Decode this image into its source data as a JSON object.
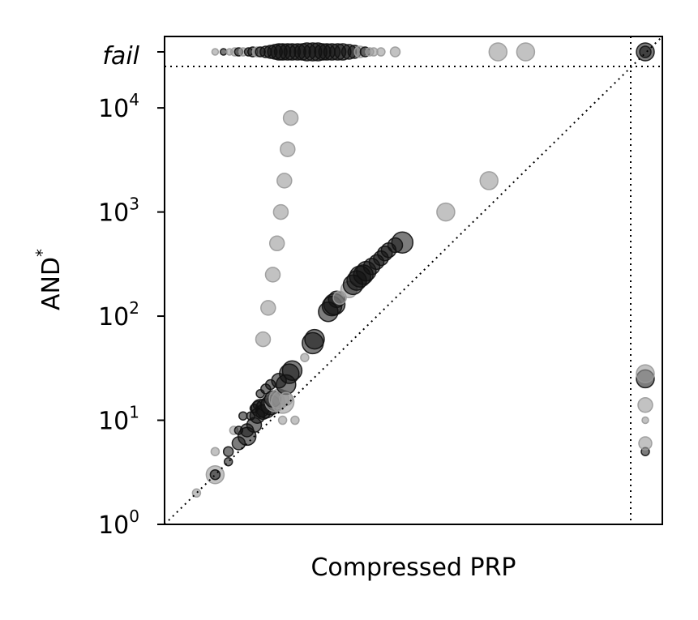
{
  "chart_data": {
    "type": "scatter",
    "title": "",
    "xlabel": "Compressed PRP",
    "ylabel": "AND",
    "ylabel_sup": "*",
    "x_scale": "log",
    "y_scale": "log",
    "xlim": [
      1,
      25000
    ],
    "ylim": [
      1,
      25000
    ],
    "x_ticks_shown": false,
    "y_ticks": [
      {
        "value": 1,
        "base": "10",
        "exp": "0"
      },
      {
        "value": 10,
        "base": "10",
        "exp": "1"
      },
      {
        "value": 100,
        "base": "10",
        "exp": "2"
      },
      {
        "value": 1000,
        "base": "10",
        "exp": "3"
      },
      {
        "value": 10000,
        "base": "10",
        "exp": "4"
      }
    ],
    "fail_label": "fail",
    "fail_band": "beyond the dotted timeout lines on both axes",
    "diagonal": "y = x dotted reference line",
    "grid": false,
    "legend": "none",
    "colors": {
      "dark": "#111111",
      "gray": "#9a9a9a",
      "axis": "#000000"
    },
    "points": [
      {
        "x": 2,
        "y": 2,
        "s": 5,
        "c": "g"
      },
      {
        "x": 3,
        "y": 3,
        "s": 11,
        "c": "g"
      },
      {
        "x": 3,
        "y": 3,
        "s": 6,
        "c": "d"
      },
      {
        "x": 3,
        "y": 5,
        "s": 5,
        "c": "g"
      },
      {
        "x": 4,
        "y": 4,
        "s": 5,
        "c": "d"
      },
      {
        "x": 4,
        "y": 5,
        "s": 6,
        "c": "d"
      },
      {
        "x": 4.5,
        "y": 8,
        "s": 5,
        "c": "g"
      },
      {
        "x": 5,
        "y": 6,
        "s": 8,
        "c": "d"
      },
      {
        "x": 5,
        "y": 8,
        "s": 5,
        "c": "d"
      },
      {
        "x": 6,
        "y": 7,
        "s": 11,
        "c": "d"
      },
      {
        "x": 6,
        "y": 8,
        "s": 8,
        "c": "d"
      },
      {
        "x": 5.5,
        "y": 11,
        "s": 5,
        "c": "d"
      },
      {
        "x": 6.5,
        "y": 11,
        "s": 5,
        "c": "d"
      },
      {
        "x": 7,
        "y": 9,
        "s": 9,
        "c": "d"
      },
      {
        "x": 7.5,
        "y": 11,
        "s": 9,
        "c": "d"
      },
      {
        "x": 7,
        "y": 13,
        "s": 5,
        "c": "d"
      },
      {
        "x": 7.5,
        "y": 14,
        "s": 5,
        "c": "d"
      },
      {
        "x": 8,
        "y": 13,
        "s": 11,
        "c": "d"
      },
      {
        "x": 8.5,
        "y": 12,
        "s": 9,
        "c": "d"
      },
      {
        "x": 8,
        "y": 18,
        "s": 5,
        "c": "d"
      },
      {
        "x": 9,
        "y": 13,
        "s": 12,
        "c": "d"
      },
      {
        "x": 9,
        "y": 20,
        "s": 6,
        "c": "d"
      },
      {
        "x": 10,
        "y": 22,
        "s": 6,
        "c": "d"
      },
      {
        "x": 10,
        "y": 14,
        "s": 12,
        "c": "d"
      },
      {
        "x": 11,
        "y": 15,
        "s": 12,
        "c": "g"
      },
      {
        "x": 10.5,
        "y": 16,
        "s": 10,
        "c": "d"
      },
      {
        "x": 12,
        "y": 16,
        "s": 12,
        "c": "g"
      },
      {
        "x": 12,
        "y": 24,
        "s": 9,
        "c": "d"
      },
      {
        "x": 13,
        "y": 15,
        "s": 14,
        "c": "g"
      },
      {
        "x": 14,
        "y": 22,
        "s": 12,
        "c": "d"
      },
      {
        "x": 15,
        "y": 28,
        "s": 12,
        "c": "d"
      },
      {
        "x": 16,
        "y": 30,
        "s": 12,
        "c": "d"
      },
      {
        "x": 14,
        "y": 16,
        "s": 8,
        "c": "g"
      },
      {
        "x": 13,
        "y": 10,
        "s": 5,
        "c": "g"
      },
      {
        "x": 17,
        "y": 10,
        "s": 5,
        "c": "g"
      },
      {
        "x": 21,
        "y": 40,
        "s": 5,
        "c": "g"
      },
      {
        "x": 25,
        "y": 55,
        "s": 13,
        "c": "d"
      },
      {
        "x": 26,
        "y": 60,
        "s": 12,
        "c": "d"
      },
      {
        "x": 35,
        "y": 110,
        "s": 12,
        "c": "d"
      },
      {
        "x": 38,
        "y": 125,
        "s": 12,
        "c": "d"
      },
      {
        "x": 40,
        "y": 130,
        "s": 13,
        "c": "d"
      },
      {
        "x": 42,
        "y": 145,
        "s": 10,
        "c": "d"
      },
      {
        "x": 45,
        "y": 150,
        "s": 8,
        "c": "g"
      },
      {
        "x": 55,
        "y": 180,
        "s": 10,
        "c": "g"
      },
      {
        "x": 60,
        "y": 200,
        "s": 12,
        "c": "d"
      },
      {
        "x": 65,
        "y": 220,
        "s": 12,
        "c": "d"
      },
      {
        "x": 70,
        "y": 240,
        "s": 13,
        "c": "d"
      },
      {
        "x": 75,
        "y": 250,
        "s": 12,
        "c": "d"
      },
      {
        "x": 80,
        "y": 270,
        "s": 12,
        "c": "d"
      },
      {
        "x": 90,
        "y": 300,
        "s": 10,
        "c": "d"
      },
      {
        "x": 100,
        "y": 330,
        "s": 9,
        "c": "d"
      },
      {
        "x": 110,
        "y": 360,
        "s": 9,
        "c": "d"
      },
      {
        "x": 120,
        "y": 400,
        "s": 9,
        "c": "d"
      },
      {
        "x": 130,
        "y": 430,
        "s": 9,
        "c": "d"
      },
      {
        "x": 150,
        "y": 480,
        "s": 9,
        "c": "d"
      },
      {
        "x": 175,
        "y": 510,
        "s": 13,
        "c": "d"
      },
      {
        "x": 450,
        "y": 1000,
        "s": 11,
        "c": "g"
      },
      {
        "x": 1150,
        "y": 2000,
        "s": 11,
        "c": "g"
      },
      {
        "x": 8.5,
        "y": 60,
        "s": 9,
        "c": "g"
      },
      {
        "x": 9.5,
        "y": 120,
        "s": 9,
        "c": "g"
      },
      {
        "x": 10.5,
        "y": 250,
        "s": 9,
        "c": "g"
      },
      {
        "x": 11.5,
        "y": 500,
        "s": 9,
        "c": "g"
      },
      {
        "x": 12.5,
        "y": 1000,
        "s": 9,
        "c": "g"
      },
      {
        "x": 13.5,
        "y": 2000,
        "s": 9,
        "c": "g"
      },
      {
        "x": 14.5,
        "y": 4000,
        "s": 9,
        "c": "g"
      },
      {
        "x": 15.5,
        "y": 8000,
        "s": 9,
        "c": "g"
      }
    ],
    "fail_y_points": [
      {
        "x": 3,
        "s": 4,
        "c": "g"
      },
      {
        "x": 3.6,
        "s": 4,
        "c": "d"
      },
      {
        "x": 4.1,
        "s": 4,
        "c": "g"
      },
      {
        "x": 4.6,
        "s": 5,
        "c": "g"
      },
      {
        "x": 5,
        "s": 5,
        "c": "d"
      },
      {
        "x": 5.5,
        "s": 5,
        "c": "g"
      },
      {
        "x": 6.2,
        "s": 5,
        "c": "d"
      },
      {
        "x": 6.8,
        "s": 6,
        "c": "d"
      },
      {
        "x": 7.5,
        "s": 6,
        "c": "g"
      },
      {
        "x": 8,
        "s": 6,
        "c": "d"
      },
      {
        "x": 9,
        "s": 7,
        "c": "d"
      },
      {
        "x": 10,
        "s": 8,
        "c": "d"
      },
      {
        "x": 11,
        "s": 9,
        "c": "d"
      },
      {
        "x": 12,
        "s": 10,
        "c": "d"
      },
      {
        "x": 13,
        "s": 10,
        "c": "d"
      },
      {
        "x": 14.5,
        "s": 10,
        "c": "d"
      },
      {
        "x": 16,
        "s": 10,
        "c": "d"
      },
      {
        "x": 18,
        "s": 10,
        "c": "d"
      },
      {
        "x": 20,
        "s": 10,
        "c": "d"
      },
      {
        "x": 22,
        "s": 11,
        "c": "d"
      },
      {
        "x": 25,
        "s": 11,
        "c": "d"
      },
      {
        "x": 28,
        "s": 11,
        "c": "d"
      },
      {
        "x": 31,
        "s": 10,
        "c": "d"
      },
      {
        "x": 34,
        "s": 10,
        "c": "d"
      },
      {
        "x": 38,
        "s": 10,
        "c": "d"
      },
      {
        "x": 43,
        "s": 10,
        "c": "d"
      },
      {
        "x": 48,
        "s": 10,
        "c": "d"
      },
      {
        "x": 55,
        "s": 9,
        "c": "d"
      },
      {
        "x": 62,
        "s": 8,
        "c": "d"
      },
      {
        "x": 70,
        "s": 7,
        "c": "g"
      },
      {
        "x": 78,
        "s": 6,
        "c": "d"
      },
      {
        "x": 86,
        "s": 5,
        "c": "g"
      },
      {
        "x": 94,
        "s": 5,
        "c": "g"
      },
      {
        "x": 110,
        "s": 5,
        "c": "g"
      },
      {
        "x": 150,
        "s": 6,
        "c": "g"
      },
      {
        "x": 1400,
        "s": 11,
        "c": "g"
      },
      {
        "x": 2550,
        "s": 11,
        "c": "g"
      }
    ],
    "fail_x_points": [
      {
        "y": 5,
        "s": 5,
        "c": "d"
      },
      {
        "y": 6,
        "s": 8,
        "c": "g"
      },
      {
        "y": 10,
        "s": 4,
        "c": "g"
      },
      {
        "y": 14,
        "s": 9,
        "c": "g"
      },
      {
        "y": 25,
        "s": 11,
        "c": "d"
      },
      {
        "y": 28,
        "s": 11,
        "c": "g"
      }
    ],
    "fail_both_points": [
      {
        "s": 11,
        "c": "d"
      },
      {
        "s": 7,
        "c": "d"
      }
    ]
  }
}
